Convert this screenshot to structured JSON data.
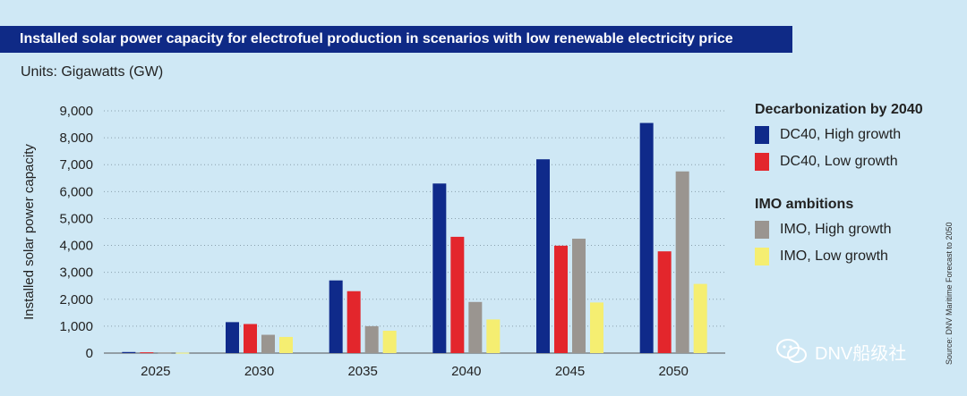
{
  "chart_data": {
    "type": "bar",
    "title": "Installed solar power capacity for electrofuel production in scenarios with low renewable electricity price",
    "units_label": "Units:",
    "units_value": "Gigawatts (GW)",
    "ylabel": "Installed solar power capacity",
    "xlabel": "",
    "categories": [
      "2025",
      "2030",
      "2035",
      "2040",
      "2045",
      "2050"
    ],
    "ylim": [
      0,
      9000
    ],
    "yticks": [
      "0",
      "1,000",
      "2,000",
      "3,000",
      "4,000",
      "5,000",
      "6,000",
      "7,000",
      "8,000",
      "9,000"
    ],
    "ytick_values": [
      0,
      1000,
      2000,
      3000,
      4000,
      5000,
      6000,
      7000,
      8000,
      9000
    ],
    "grid": "horizontal-dotted",
    "series": [
      {
        "name": "DC40, High growth",
        "color": "#0f2a8a",
        "values": [
          40,
          1150,
          2700,
          6300,
          7200,
          8550
        ]
      },
      {
        "name": "DC40, Low growth",
        "color": "#e3262c",
        "values": [
          30,
          1080,
          2300,
          4320,
          3990,
          3780
        ]
      },
      {
        "name": "IMO, High growth",
        "color": "#9a9590",
        "values": [
          25,
          680,
          1000,
          1900,
          4250,
          6750
        ]
      },
      {
        "name": "IMO, Low growth",
        "color": "#f5ee71",
        "values": [
          15,
          600,
          830,
          1250,
          1880,
          2570
        ]
      }
    ],
    "legend": {
      "placement": "right",
      "groups": [
        {
          "heading": "Decarbonization by 2040",
          "series_indices": [
            0,
            1
          ]
        },
        {
          "heading": "IMO ambitions",
          "series_indices": [
            2,
            3
          ]
        }
      ]
    }
  },
  "source": "Source: DNV Maritime Forecast to 2050",
  "watermark": "DNV船级社"
}
